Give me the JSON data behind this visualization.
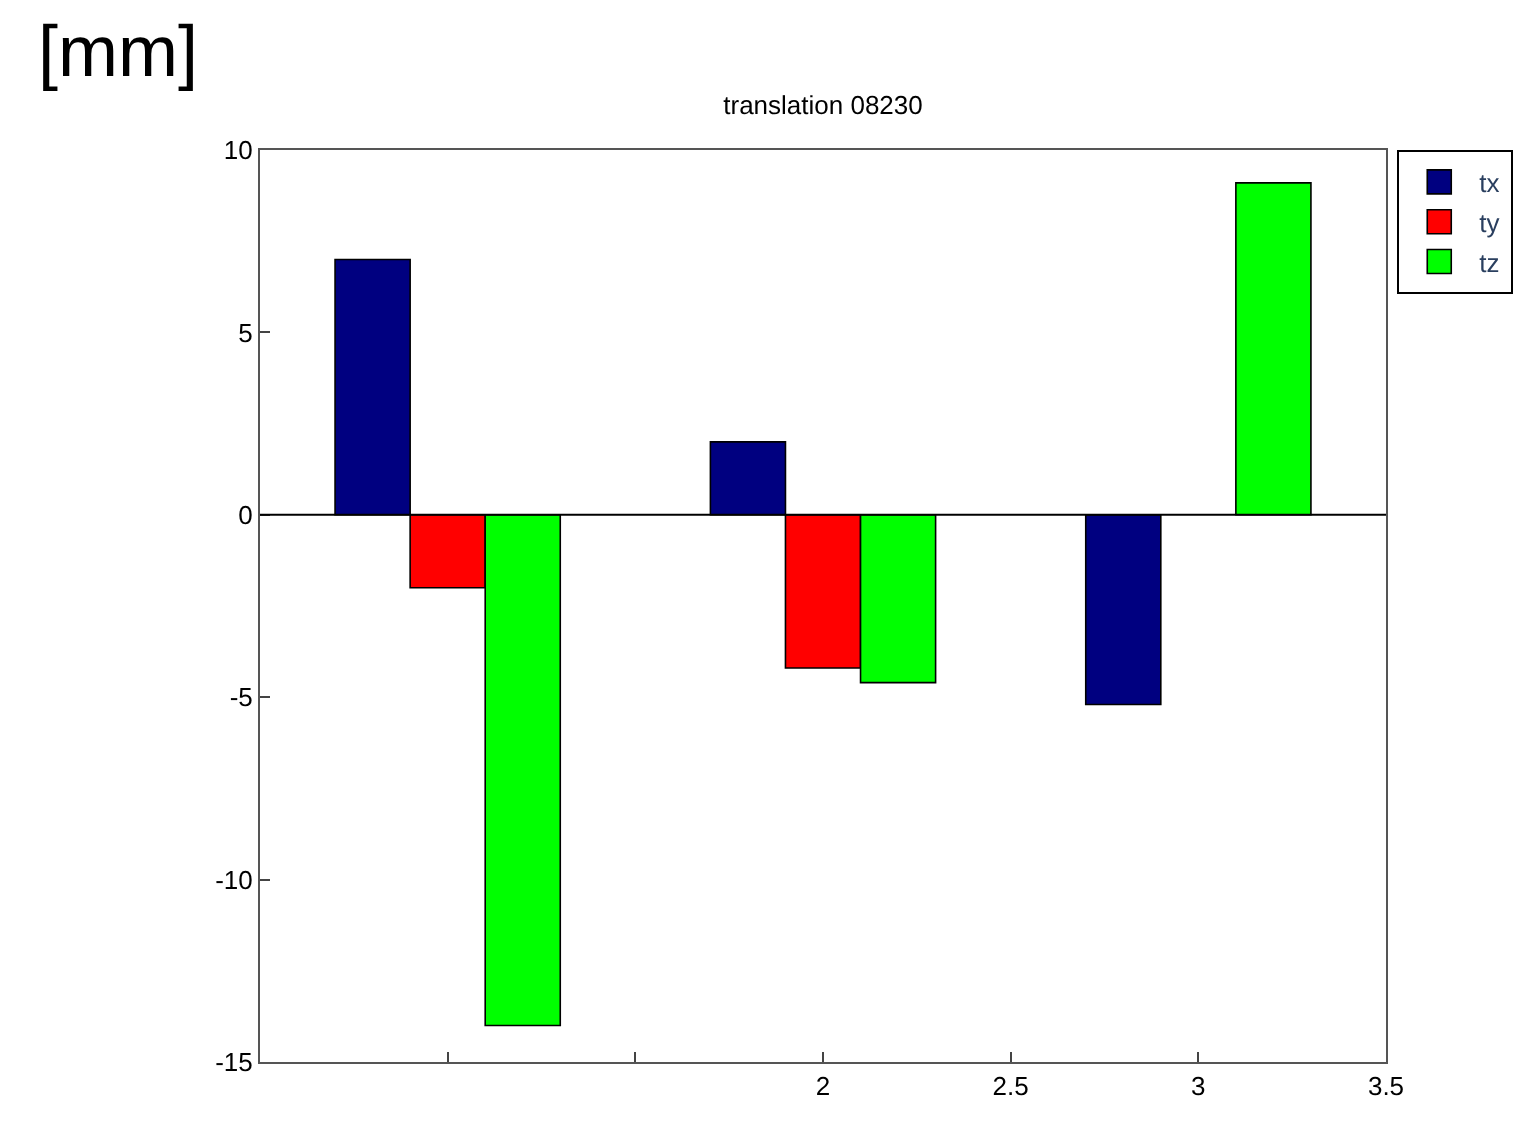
{
  "chart_data": {
    "type": "bar",
    "title": "translation 08230",
    "annotations": [
      "[mm]"
    ],
    "series": [
      {
        "name": "tx",
        "color": "#000080",
        "x": [
          0.8,
          1.8,
          2.8
        ],
        "values": [
          7,
          2,
          -5.2
        ]
      },
      {
        "name": "ty",
        "color": "#ff0000",
        "x": [
          1.0,
          2.0
        ],
        "values": [
          -2,
          -4.2
        ]
      },
      {
        "name": "tz",
        "color": "#00ff00",
        "x": [
          1.2,
          2.2,
          3.2
        ],
        "values": [
          -14,
          -4.6,
          9.1
        ]
      }
    ],
    "xlim": [
      0.5,
      3.5
    ],
    "xticks": [
      {
        "value": 0.5,
        "label": null
      },
      {
        "value": 1,
        "label": null
      },
      {
        "value": 1.5,
        "label": null
      },
      2,
      2.5,
      3,
      3.5
    ],
    "ylim": [
      -15,
      10
    ],
    "yticks": [
      -15,
      -10,
      -5,
      0,
      5,
      10
    ],
    "ref_lines": [
      {
        "axis": "y",
        "value": 0,
        "color": "#000000"
      }
    ],
    "legend": "top right"
  }
}
